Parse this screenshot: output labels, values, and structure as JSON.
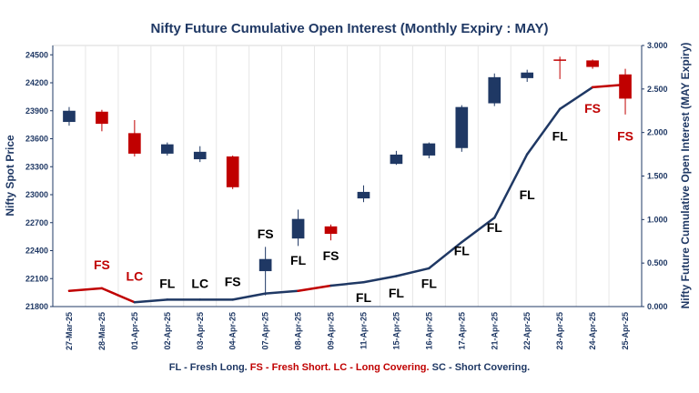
{
  "chart_data": {
    "type": "candlestick-line",
    "title": "Nifty Future Cumulative Open Interest (Monthly Expiry : MAY)",
    "y_left_label": "Nifty Spot Price",
    "y_right_label": "Nifty Future Cumulative Open Interest (MAY Expiry)",
    "y_left_ticks": [
      "21800",
      "22100",
      "22400",
      "22700",
      "23000",
      "23300",
      "23600",
      "23900",
      "24200",
      "24500"
    ],
    "y_right_ticks": [
      "0.000",
      "0.500",
      "1.000",
      "1.500",
      "2.000",
      "2.500",
      "3.000"
    ],
    "y_left_range": [
      21800,
      24600
    ],
    "y_right_range": [
      0,
      3.0
    ],
    "categories": [
      "27-Mar-25",
      "28-Mar-25",
      "01-Apr-25",
      "02-Apr-25",
      "03-Apr-25",
      "04-Apr-25",
      "07-Apr-25",
      "08-Apr-25",
      "09-Apr-25",
      "11-Apr-25",
      "15-Apr-25",
      "16-Apr-25",
      "17-Apr-25",
      "21-Apr-25",
      "22-Apr-25",
      "23-Apr-25",
      "24-Apr-25",
      "25-Apr-25"
    ],
    "candles": [
      {
        "open": 23780,
        "high": 23940,
        "low": 23740,
        "close": 23900,
        "color": "#1f3864"
      },
      {
        "open": 23890,
        "high": 23910,
        "low": 23680,
        "close": 23760,
        "color": "#c00000"
      },
      {
        "open": 23660,
        "high": 23800,
        "low": 23410,
        "close": 23440,
        "color": "#c00000"
      },
      {
        "open": 23440,
        "high": 23560,
        "low": 23420,
        "close": 23540,
        "color": "#1f3864"
      },
      {
        "open": 23380,
        "high": 23520,
        "low": 23350,
        "close": 23460,
        "color": "#1f3864"
      },
      {
        "open": 23410,
        "high": 23420,
        "low": 23060,
        "close": 23080,
        "color": "#c00000"
      },
      {
        "open": 22180,
        "high": 22440,
        "low": 21920,
        "close": 22310,
        "color": "#1f3864"
      },
      {
        "open": 22530,
        "high": 22840,
        "low": 22450,
        "close": 22740,
        "color": "#1f3864"
      },
      {
        "open": 22660,
        "high": 22680,
        "low": 22510,
        "close": 22580,
        "color": "#c00000"
      },
      {
        "open": 22960,
        "high": 23100,
        "low": 22920,
        "close": 23030,
        "color": "#1f3864"
      },
      {
        "open": 23330,
        "high": 23470,
        "low": 23320,
        "close": 23430,
        "color": "#1f3864"
      },
      {
        "open": 23420,
        "high": 23560,
        "low": 23390,
        "close": 23550,
        "color": "#1f3864"
      },
      {
        "open": 23500,
        "high": 23960,
        "low": 23460,
        "close": 23940,
        "color": "#1f3864"
      },
      {
        "open": 23980,
        "high": 24300,
        "low": 23950,
        "close": 24260,
        "color": "#1f3864"
      },
      {
        "open": 24250,
        "high": 24340,
        "low": 24210,
        "close": 24310,
        "color": "#1f3864"
      },
      {
        "open": 24440,
        "high": 24480,
        "low": 24240,
        "close": 24450,
        "color": "#c00000"
      },
      {
        "open": 24440,
        "high": 24450,
        "low": 24350,
        "close": 24370,
        "color": "#c00000"
      },
      {
        "open": 24290,
        "high": 24350,
        "low": 23860,
        "close": 24030,
        "color": "#c00000"
      }
    ],
    "open_interest": [
      0.18,
      0.21,
      0.05,
      0.08,
      0.08,
      0.08,
      0.15,
      0.18,
      0.24,
      0.28,
      0.35,
      0.44,
      0.74,
      1.02,
      1.75,
      2.27,
      2.52,
      2.55
    ],
    "oi_segment_colors": [
      "#c00000",
      "#c00000",
      "#1f3864",
      "#1f3864",
      "#1f3864",
      "#1f3864",
      "#1f3864",
      "#c00000",
      "#1f3864",
      "#1f3864",
      "#1f3864",
      "#1f3864",
      "#1f3864",
      "#1f3864",
      "#1f3864",
      "#1f3864",
      "#c00000"
    ],
    "annotations": [
      {
        "i": 1,
        "text": "FS",
        "color": "#c00000",
        "y": 22200
      },
      {
        "i": 2,
        "text": "LC",
        "color": "#c00000",
        "y": 22080
      },
      {
        "i": 3,
        "text": "FL",
        "color": "#000000",
        "y": 22000
      },
      {
        "i": 4,
        "text": "LC",
        "color": "#000000",
        "y": 22000
      },
      {
        "i": 5,
        "text": "FS",
        "color": "#000000",
        "y": 22020
      },
      {
        "i": 6,
        "text": "FS",
        "color": "#000000",
        "y": 22530
      },
      {
        "i": 7,
        "text": "FL",
        "color": "#000000",
        "y": 22250
      },
      {
        "i": 8,
        "text": "FS",
        "color": "#000000",
        "y": 22300
      },
      {
        "i": 9,
        "text": "FL",
        "color": "#000000",
        "y": 21850
      },
      {
        "i": 10,
        "text": "FL",
        "color": "#000000",
        "y": 21900
      },
      {
        "i": 11,
        "text": "FL",
        "color": "#000000",
        "y": 22000
      },
      {
        "i": 12,
        "text": "FL",
        "color": "#000000",
        "y": 22350
      },
      {
        "i": 13,
        "text": "FL",
        "color": "#000000",
        "y": 22600
      },
      {
        "i": 14,
        "text": "FL",
        "color": "#000000",
        "y": 22950
      },
      {
        "i": 15,
        "text": "FL",
        "color": "#000000",
        "y": 23580
      },
      {
        "i": 16,
        "text": "FS",
        "color": "#c00000",
        "y": 23880
      },
      {
        "i": 17,
        "text": "FS",
        "color": "#c00000",
        "y": 23580
      }
    ],
    "legend_note": [
      {
        "text": "FL - Fresh Long. ",
        "color": "#1f3864"
      },
      {
        "text": "FS - Fresh Short. ",
        "color": "#c00000"
      },
      {
        "text": "LC - Long Covering. ",
        "color": "#c00000"
      },
      {
        "text": "SC - Short Covering.",
        "color": "#1f3864"
      }
    ]
  }
}
